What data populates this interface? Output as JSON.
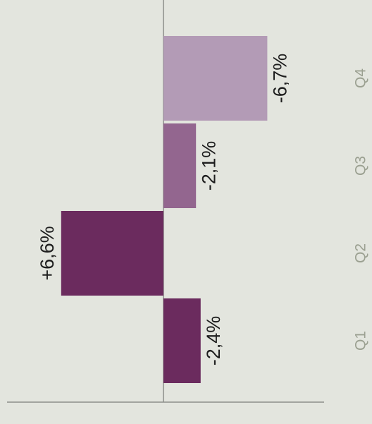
{
  "chart_data": {
    "type": "bar",
    "categories": [
      "Q1",
      "Q2",
      "Q3",
      "Q4"
    ],
    "values": [
      -2.4,
      6.6,
      -2.1,
      -6.7
    ],
    "value_labels": [
      "-2,4%",
      "+6,6%",
      "-2,1%",
      "-6,7%"
    ],
    "colors": [
      "#6b2b5e",
      "#6b2b5e",
      "#93668f",
      "#b39bb6"
    ]
  }
}
